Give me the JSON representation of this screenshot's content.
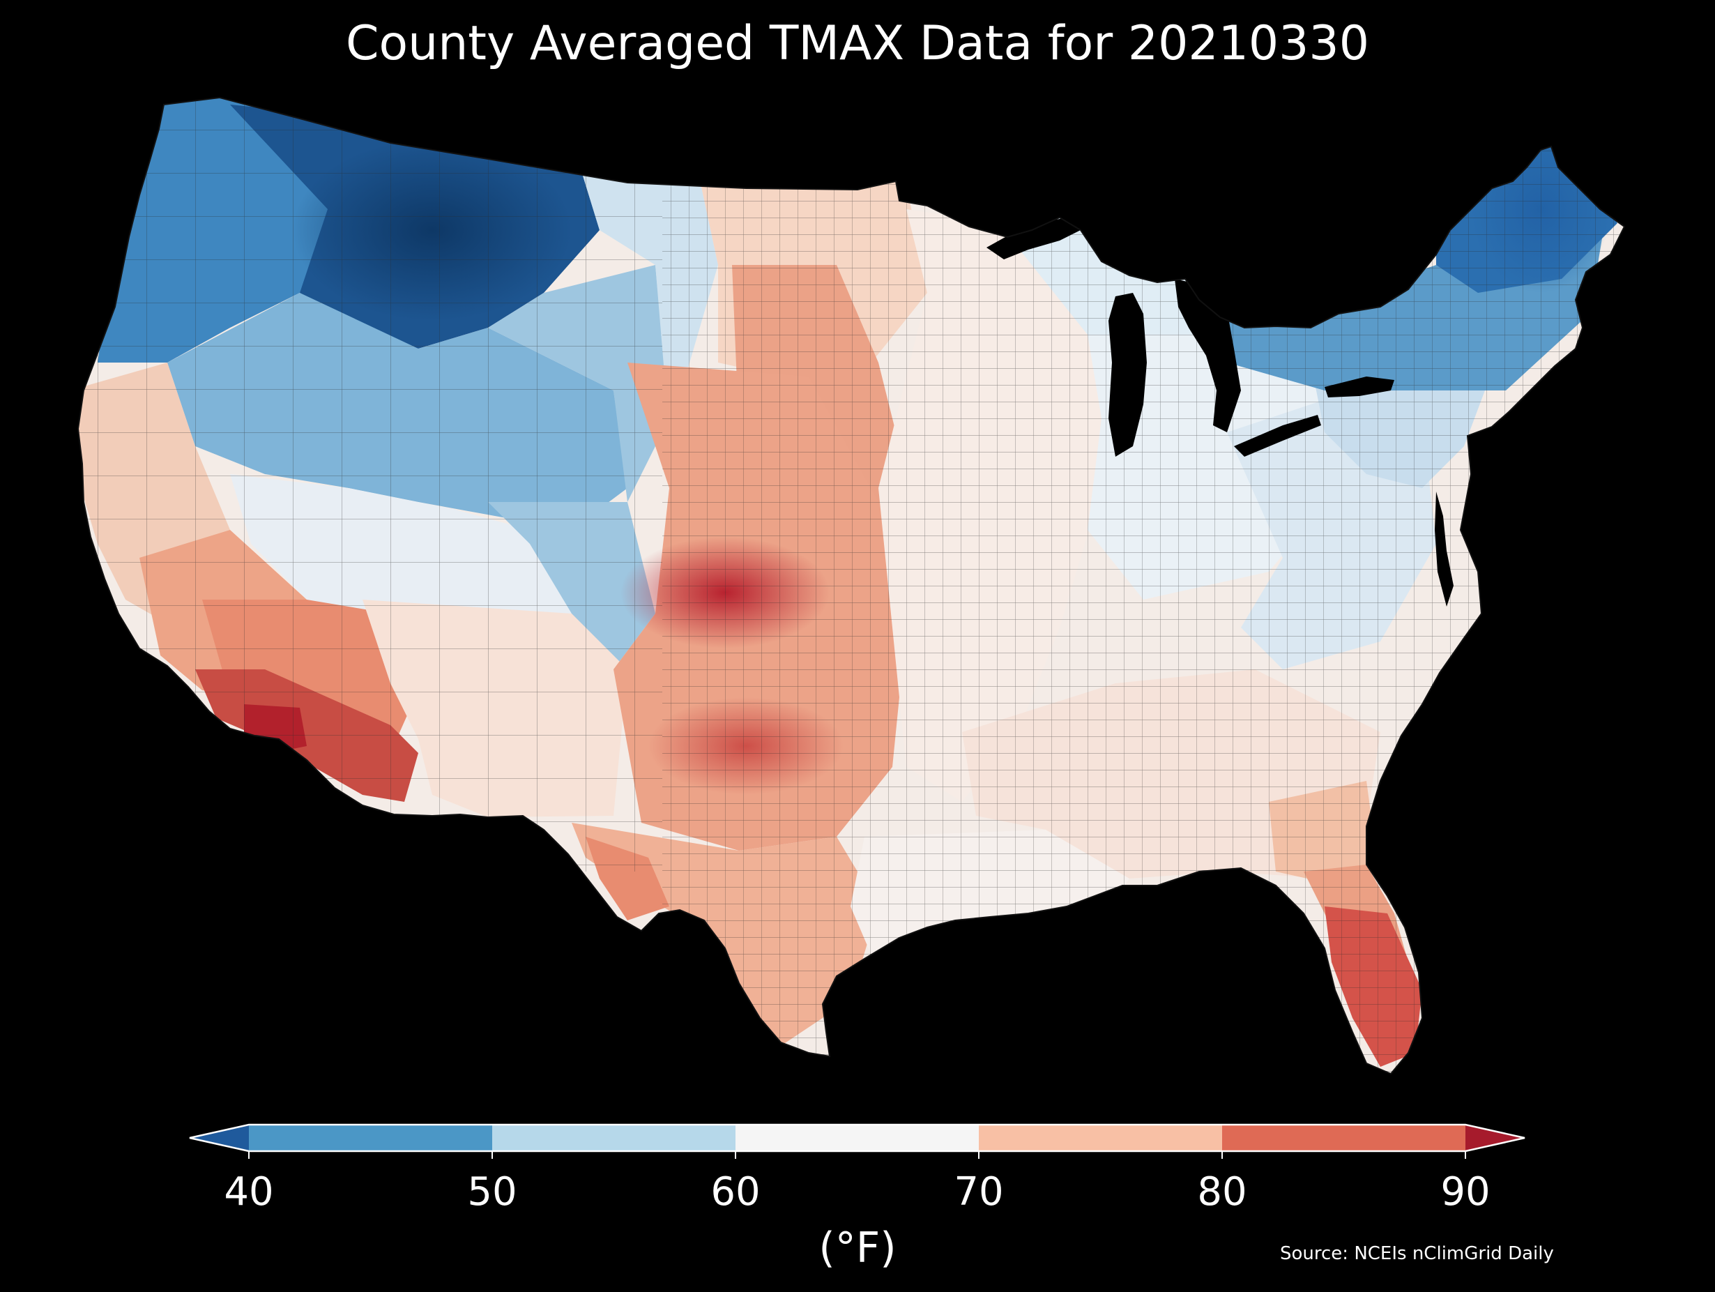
{
  "title": "County Averaged TMAX Data for 20210330",
  "colorbar": {
    "ticks": [
      "40",
      "50",
      "60",
      "70",
      "80",
      "90"
    ],
    "unit": "(°F)",
    "colors": {
      "below_40": "#1f5a9c",
      "40_50": "#4b97c6",
      "50_60": "#b6d8ea",
      "60_70": "#f5f5f5",
      "70_80": "#f8c0a5",
      "80_90": "#df6a55",
      "above_90": "#a61b2c"
    }
  },
  "source": "Source: NCEIs nClimGrid Daily",
  "map": {
    "region": "contiguous-us",
    "region_fills": {
      "pacific-northwest": "#3f87c0",
      "northern-rockies": "#1d5590",
      "montana-core": "#12406f",
      "great-basin-north": "#7fb4d8",
      "great-basin-south": "#e8eef4",
      "colorado-plateau": "#9ec6e0",
      "california-coast": "#f2cdb9",
      "california-south": "#eda487",
      "desert-southwest": "#e88c70",
      "sonoran-desert": "#c84d44",
      "sw-arizona-hotspot": "#b2212c",
      "new-mexico": "#f7e2d7",
      "northern-plains-west": "#cfe2ef",
      "dakotas": "#f6d6c4",
      "southern-minnesota-band": "#eba287",
      "central-plains-west": "#eca388",
      "kansas-hotspot": "#d0504a",
      "oklahoma-texas-panhandle": "#e2826a",
      "texas-south": "#f0b196",
      "gulf-coast": "#f6f0ed",
      "midwest": "#f7ece6",
      "great-lakes": "#e0edf5",
      "ohio-valley": "#eaf1f6",
      "southeast": "#f6e3da",
      "appalachians": "#dbe8f2",
      "mid-atlantic": "#c8dded",
      "northeast": "#5b9bc9",
      "new-england-north": "#2b6fb0",
      "south-georgia": "#f2c0a6",
      "florida-north": "#eba084",
      "florida-south": "#d4534a"
    },
    "lakes": [
      "Lake Superior",
      "Lake Michigan",
      "Lake Huron",
      "Lake Erie",
      "Lake Ontario"
    ]
  }
}
